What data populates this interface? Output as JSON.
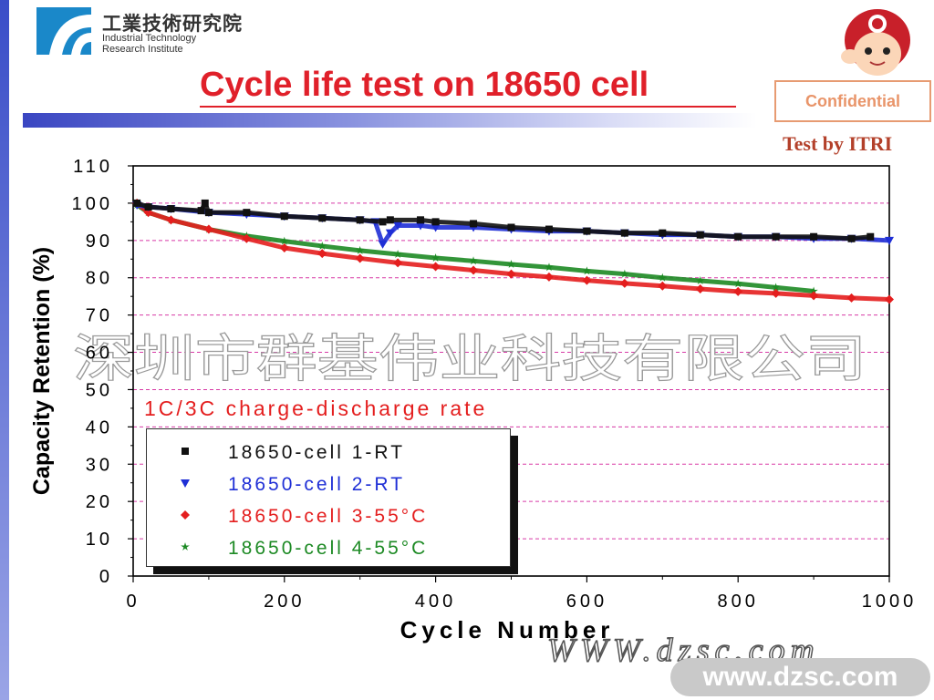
{
  "header": {
    "org_cn": "工業技術研究院",
    "org_en_1": "Industrial Technology",
    "org_en_2": "Research Institute",
    "title": "Cycle life test on 18650 cell",
    "confidential": "Confidential",
    "test_by": "Test by ITRI"
  },
  "watermark": {
    "cn": "深圳市群基伟业科技有限公司",
    "mid": "WWW.dzsc.com",
    "url": "www.dzsc.com"
  },
  "colors": {
    "title": "#e0202a",
    "grid": "#d83aa6"
  },
  "chart_data": {
    "type": "scatter",
    "xlabel": "Cycle Number",
    "ylabel": "Capacity Retention (%)",
    "xlim": [
      0,
      1000
    ],
    "ylim": [
      0,
      110
    ],
    "xticks": [
      0,
      200,
      400,
      600,
      800,
      1000
    ],
    "yticks": [
      0,
      10,
      20,
      30,
      40,
      50,
      60,
      70,
      80,
      90,
      100,
      110
    ],
    "grid": "dashed horizontal",
    "annotation": "1C/3C charge-discharge rate",
    "legend_position": "bottom-left",
    "series": [
      {
        "name": "18650-cell 1-RT",
        "color": "#111111",
        "marker": "square",
        "points": [
          [
            5,
            100
          ],
          [
            20,
            99
          ],
          [
            50,
            98.5
          ],
          [
            90,
            98
          ],
          [
            95,
            100
          ],
          [
            100,
            97.5
          ],
          [
            150,
            97.5
          ],
          [
            200,
            96.5
          ],
          [
            250,
            96
          ],
          [
            300,
            95.5
          ],
          [
            330,
            95
          ],
          [
            340,
            95.5
          ],
          [
            380,
            95.5
          ],
          [
            400,
            95
          ],
          [
            450,
            94.5
          ],
          [
            500,
            93.5
          ],
          [
            550,
            93
          ],
          [
            600,
            92.5
          ],
          [
            650,
            92
          ],
          [
            700,
            92
          ],
          [
            750,
            91.5
          ],
          [
            800,
            91
          ],
          [
            850,
            91
          ],
          [
            900,
            91
          ],
          [
            950,
            90.5
          ],
          [
            975,
            91
          ]
        ]
      },
      {
        "name": "18650-cell 2-RT",
        "color": "#1f2fd6",
        "marker": "triangle-down",
        "points": [
          [
            5,
            99.5
          ],
          [
            20,
            99
          ],
          [
            50,
            98.5
          ],
          [
            100,
            97.5
          ],
          [
            150,
            97
          ],
          [
            200,
            96.5
          ],
          [
            250,
            96
          ],
          [
            300,
            95.5
          ],
          [
            320,
            95
          ],
          [
            330,
            89
          ],
          [
            340,
            92
          ],
          [
            350,
            94
          ],
          [
            380,
            94
          ],
          [
            400,
            93.5
          ],
          [
            450,
            93.5
          ],
          [
            500,
            93
          ],
          [
            550,
            92.5
          ],
          [
            600,
            92.5
          ],
          [
            650,
            92
          ],
          [
            700,
            91.5
          ],
          [
            750,
            91.5
          ],
          [
            800,
            91
          ],
          [
            850,
            91
          ],
          [
            900,
            90.5
          ],
          [
            950,
            90.5
          ],
          [
            1000,
            90
          ]
        ]
      },
      {
        "name": "18650-cell 3-55°C",
        "color": "#e41e1e",
        "marker": "diamond",
        "points": [
          [
            5,
            100
          ],
          [
            20,
            97.5
          ],
          [
            50,
            95.5
          ],
          [
            100,
            93
          ],
          [
            150,
            90.5
          ],
          [
            200,
            88
          ],
          [
            250,
            86.5
          ],
          [
            300,
            85.2
          ],
          [
            350,
            84
          ],
          [
            400,
            83
          ],
          [
            450,
            82
          ],
          [
            500,
            81
          ],
          [
            550,
            80.2
          ],
          [
            600,
            79.3
          ],
          [
            650,
            78.5
          ],
          [
            700,
            77.8
          ],
          [
            750,
            77
          ],
          [
            800,
            76.3
          ],
          [
            850,
            75.8
          ],
          [
            900,
            75.2
          ],
          [
            950,
            74.6
          ],
          [
            1000,
            74.2
          ]
        ]
      },
      {
        "name": "18650-cell 4-55°C",
        "color": "#1d8a24",
        "marker": "star",
        "points": [
          [
            5,
            99.5
          ],
          [
            20,
            97.5
          ],
          [
            50,
            95.5
          ],
          [
            100,
            93
          ],
          [
            150,
            91.2
          ],
          [
            200,
            89.8
          ],
          [
            250,
            88.5
          ],
          [
            300,
            87.3
          ],
          [
            350,
            86.3
          ],
          [
            400,
            85.3
          ],
          [
            450,
            84.5
          ],
          [
            500,
            83.6
          ],
          [
            550,
            82.8
          ],
          [
            600,
            81.8
          ],
          [
            650,
            81
          ],
          [
            700,
            80
          ],
          [
            750,
            79.2
          ],
          [
            800,
            78.4
          ],
          [
            850,
            77.4
          ],
          [
            900,
            76.4
          ]
        ]
      }
    ]
  }
}
